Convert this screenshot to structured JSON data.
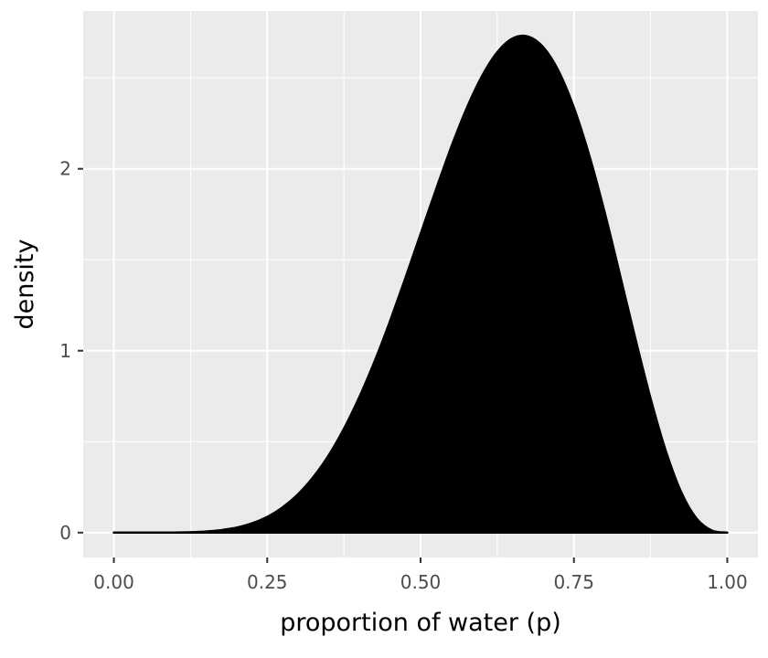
{
  "figure": {
    "title": ""
  },
  "chart_data": {
    "type": "area",
    "subtype": "density",
    "title": "",
    "xlabel": "proportion of water (p)",
    "ylabel": "density",
    "xlim": [
      0,
      1
    ],
    "ylim": [
      0,
      2.731
    ],
    "expand": 0.05,
    "grid": "major-and-minor, white on gray panel",
    "legend": "none",
    "x_ticks": [
      {
        "label": "0.00",
        "value": 0.0
      },
      {
        "label": "0.25",
        "value": 0.25
      },
      {
        "label": "0.50",
        "value": 0.5
      },
      {
        "label": "0.75",
        "value": 0.75
      },
      {
        "label": "1.00",
        "value": 1.0
      }
    ],
    "y_ticks": [
      {
        "label": "0",
        "value": 0
      },
      {
        "label": "1",
        "value": 1
      },
      {
        "label": "2",
        "value": 2
      }
    ],
    "series": [
      {
        "name": "density",
        "x": [
          0,
          0.025,
          0.05,
          0.075,
          0.1,
          0.125,
          0.15,
          0.175,
          0.2,
          0.225,
          0.25,
          0.275,
          0.3,
          0.325,
          0.35,
          0.375,
          0.4,
          0.425,
          0.45,
          0.475,
          0.5,
          0.525,
          0.55,
          0.575,
          0.6,
          0.625,
          0.65,
          0.675,
          0.7,
          0.725,
          0.75,
          0.775,
          0.8,
          0.825,
          0.85,
          0.875,
          0.9,
          0.925,
          0.95,
          0.975,
          1
        ],
        "y": [
          0,
          2e-07,
          1.13e-05,
          0.000118,
          0.000612,
          0.002147,
          0.005876,
          0.013539,
          0.027531,
          0.050732,
          0.08652,
          0.138451,
          0.210039,
          0.304433,
          0.42406,
          0.570304,
          0.743178,
          0.941051,
          1.160502,
          1.396105,
          1.640625,
          1.885027,
          2.118821,
          2.330529,
          2.508226,
          2.640297,
          2.716215,
          2.727424,
          2.668277,
          2.536944,
          2.335968,
          2.073186,
          1.761608,
          1.417776,
          1.069216,
          0.736304,
          0.44641,
          0.22198,
          0.077185,
          0.011276,
          0
        ]
      }
    ],
    "colors": {
      "fill": "#000000",
      "outline": "#000000",
      "panel_bg": "#EBEBEB",
      "grid_major": "#FFFFFF",
      "grid_minor": "#FFFFFF",
      "tick_mark": "#333333",
      "tick_label": "#4D4D4D",
      "axis_title": "#000000"
    }
  }
}
